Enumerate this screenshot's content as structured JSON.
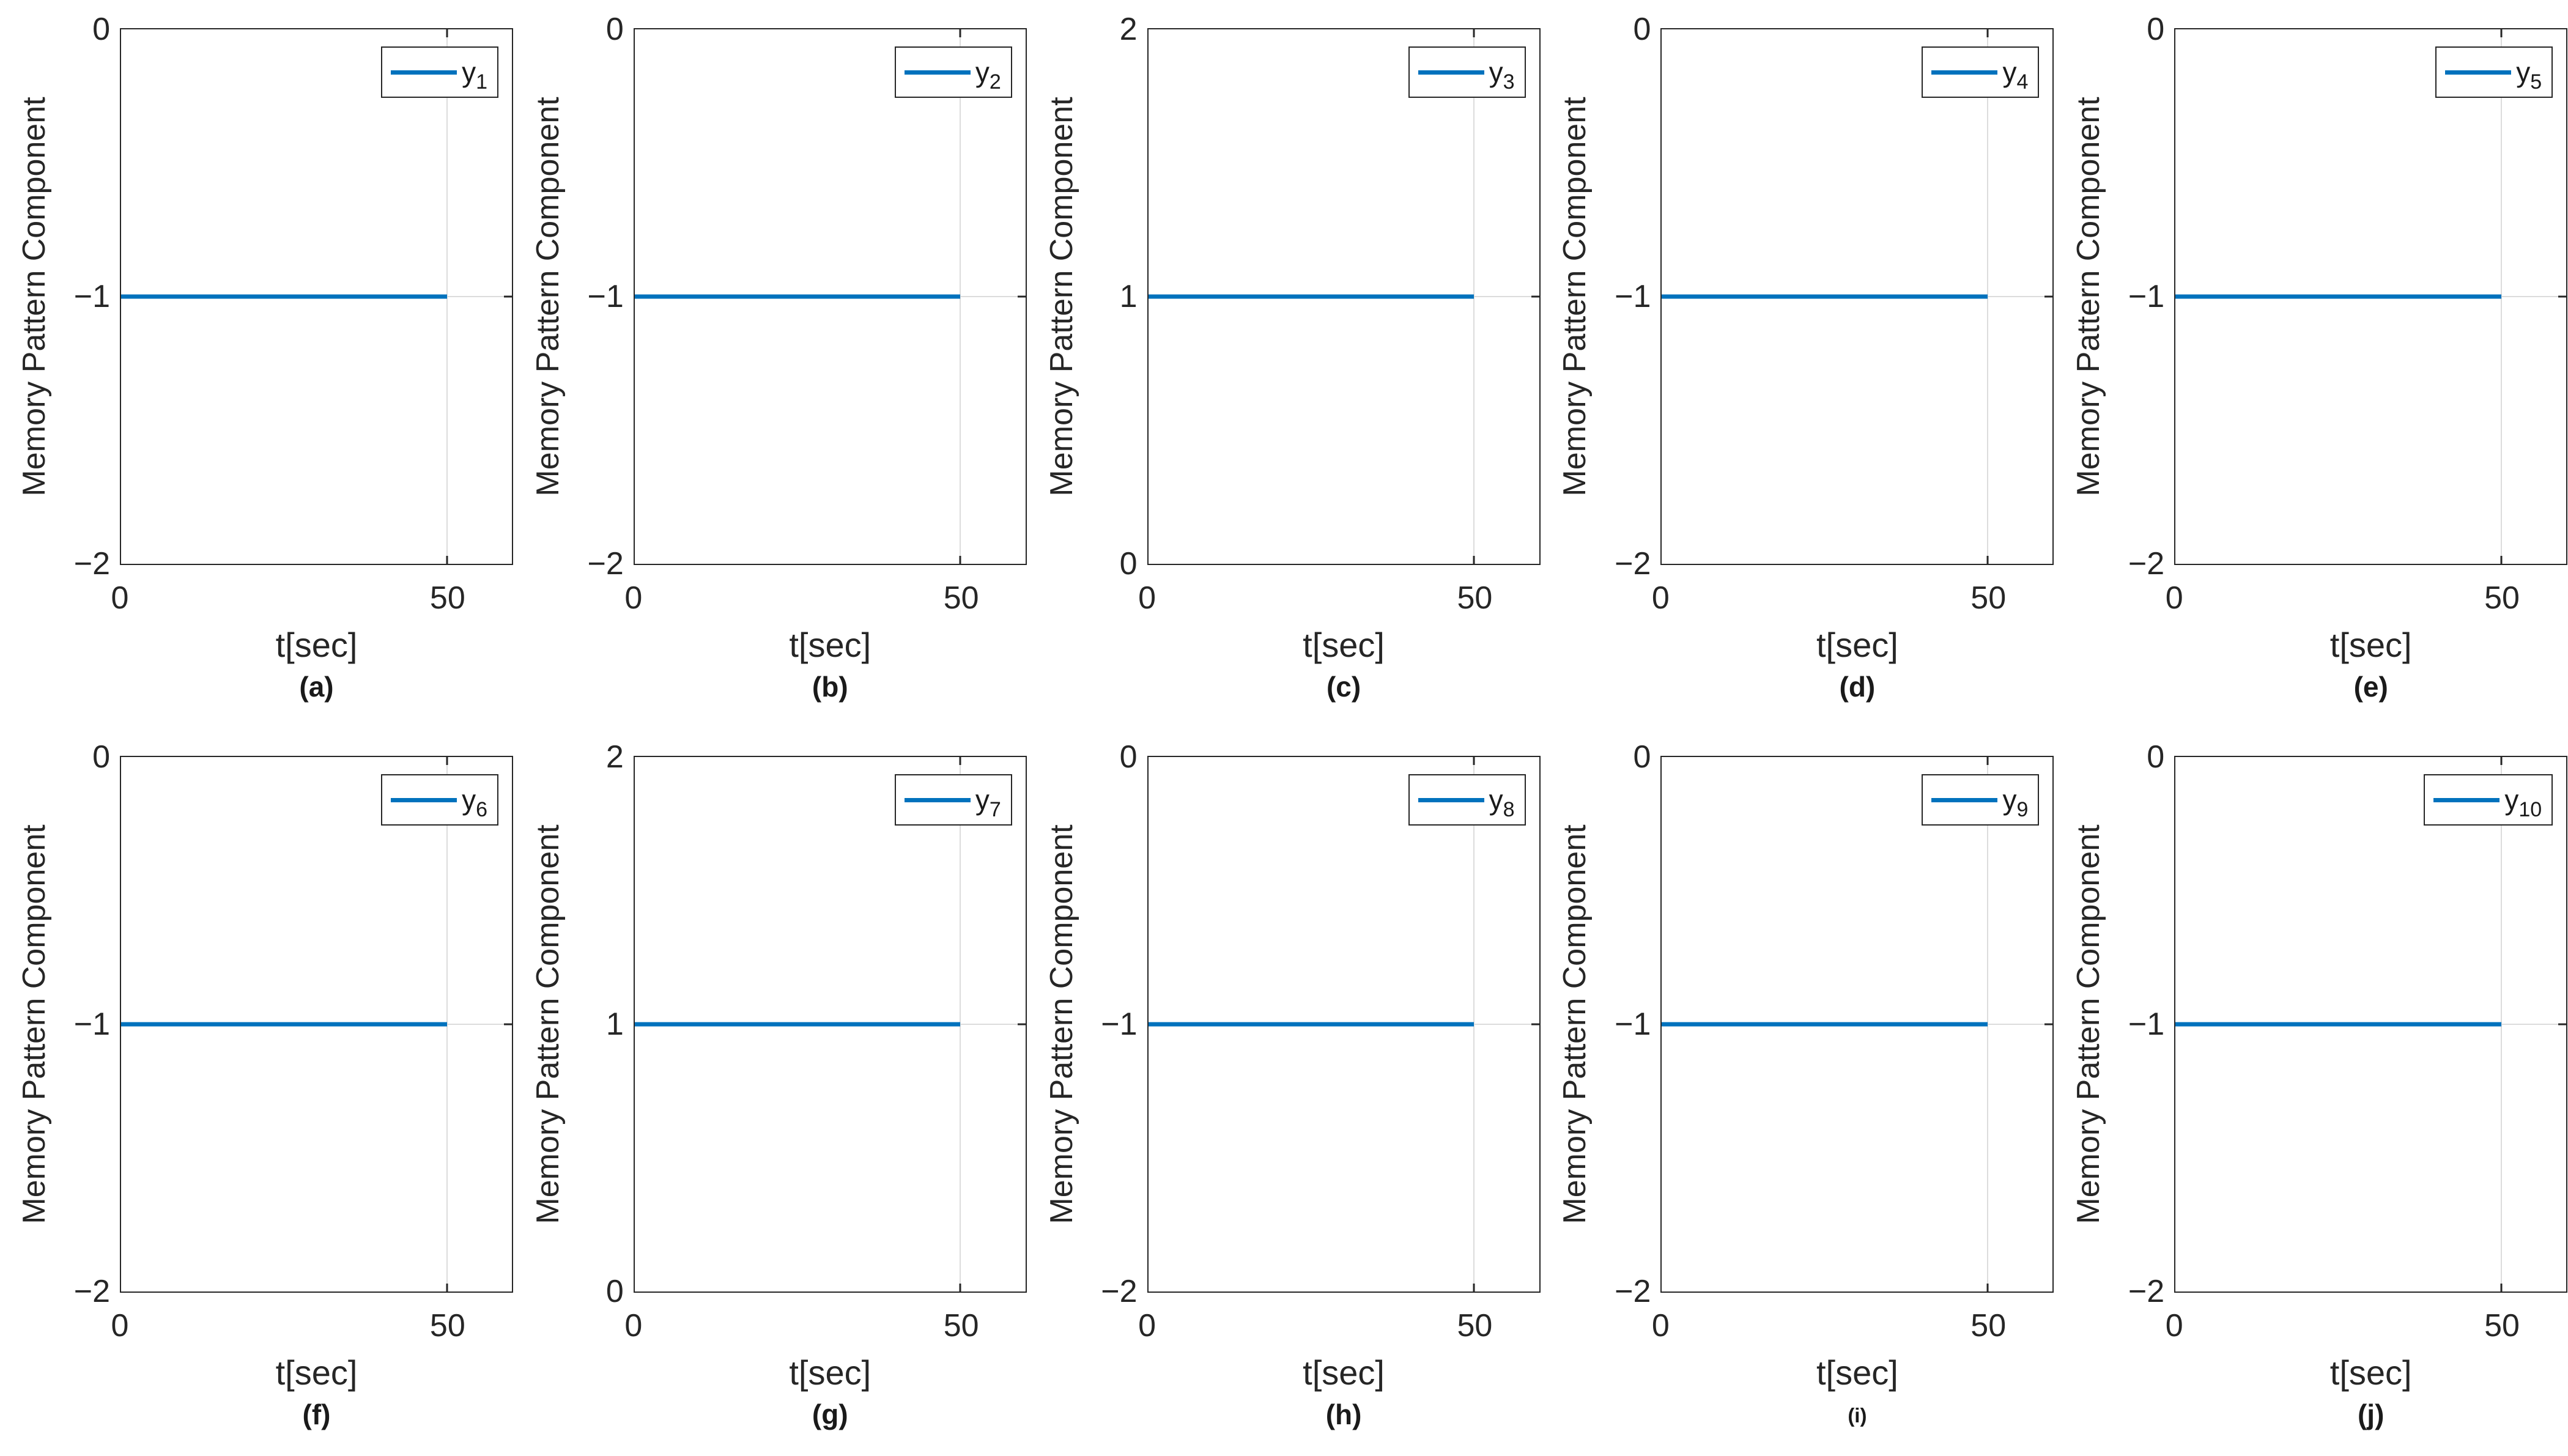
{
  "figure": {
    "ylabel": "Memory Pattern Component",
    "xlabel": "t[sec]",
    "x_tick_labels": [
      "0",
      "50"
    ]
  },
  "colors": {
    "line": "#0072BD",
    "axis_text": "#262626",
    "grid": "#dcdcdc",
    "background": "#ffffff",
    "legend_border": "#262626"
  },
  "plots": [
    {
      "panel": "(a)",
      "legend_base": "y",
      "legend_sub": "1",
      "y_tick_labels": [
        "0",
        "−1",
        "−2"
      ],
      "sublabel_small": false
    },
    {
      "panel": "(b)",
      "legend_base": "y",
      "legend_sub": "2",
      "y_tick_labels": [
        "0",
        "−1",
        "−2"
      ],
      "sublabel_small": false
    },
    {
      "panel": "(c)",
      "legend_base": "y",
      "legend_sub": "3",
      "y_tick_labels": [
        "2",
        "1",
        "0"
      ],
      "sublabel_small": false
    },
    {
      "panel": "(d)",
      "legend_base": "y",
      "legend_sub": "4",
      "y_tick_labels": [
        "0",
        "−1",
        "−2"
      ],
      "sublabel_small": false
    },
    {
      "panel": "(e)",
      "legend_base": "y",
      "legend_sub": "5",
      "y_tick_labels": [
        "0",
        "−1",
        "−2"
      ],
      "sublabel_small": false
    },
    {
      "panel": "(f)",
      "legend_base": "y",
      "legend_sub": "6",
      "y_tick_labels": [
        "0",
        "−1",
        "−2"
      ],
      "sublabel_small": false
    },
    {
      "panel": "(g)",
      "legend_base": "y",
      "legend_sub": "7",
      "y_tick_labels": [
        "2",
        "1",
        "0"
      ],
      "sublabel_small": false
    },
    {
      "panel": "(h)",
      "legend_base": "y",
      "legend_sub": "8",
      "y_tick_labels": [
        "0",
        "−1",
        "−2"
      ],
      "sublabel_small": false
    },
    {
      "panel": "(i)",
      "legend_base": "y",
      "legend_sub": "9",
      "y_tick_labels": [
        "0",
        "−1",
        "−2"
      ],
      "sublabel_small": true
    },
    {
      "panel": "(j)",
      "legend_base": "y",
      "legend_sub": "10",
      "y_tick_labels": [
        "0",
        "−1",
        "−2"
      ],
      "sublabel_small": false
    }
  ],
  "chart_data": [
    {
      "type": "line",
      "panel": "(a)",
      "xlabel": "t[sec]",
      "ylabel": "Memory Pattern Component",
      "series": [
        {
          "name": "y_1",
          "x": [
            0,
            50
          ],
          "y": [
            -1,
            -1
          ]
        }
      ],
      "xlim": [
        0,
        60
      ],
      "ylim": [
        -2,
        0
      ],
      "xticks": [
        0,
        50
      ],
      "yticks": [
        -2,
        -1,
        0
      ],
      "grid": true,
      "legend_position": "top-right"
    },
    {
      "type": "line",
      "panel": "(b)",
      "xlabel": "t[sec]",
      "ylabel": "Memory Pattern Component",
      "series": [
        {
          "name": "y_2",
          "x": [
            0,
            50
          ],
          "y": [
            -1,
            -1
          ]
        }
      ],
      "xlim": [
        0,
        60
      ],
      "ylim": [
        -2,
        0
      ],
      "xticks": [
        0,
        50
      ],
      "yticks": [
        -2,
        -1,
        0
      ],
      "grid": true,
      "legend_position": "top-right"
    },
    {
      "type": "line",
      "panel": "(c)",
      "xlabel": "t[sec]",
      "ylabel": "Memory Pattern Component",
      "series": [
        {
          "name": "y_3",
          "x": [
            0,
            50
          ],
          "y": [
            1,
            1
          ]
        }
      ],
      "xlim": [
        0,
        60
      ],
      "ylim": [
        0,
        2
      ],
      "xticks": [
        0,
        50
      ],
      "yticks": [
        0,
        1,
        2
      ],
      "grid": true,
      "legend_position": "top-right"
    },
    {
      "type": "line",
      "panel": "(d)",
      "xlabel": "t[sec]",
      "ylabel": "Memory Pattern Component",
      "series": [
        {
          "name": "y_4",
          "x": [
            0,
            50
          ],
          "y": [
            -1,
            -1
          ]
        }
      ],
      "xlim": [
        0,
        60
      ],
      "ylim": [
        -2,
        0
      ],
      "xticks": [
        0,
        50
      ],
      "yticks": [
        -2,
        -1,
        0
      ],
      "grid": true,
      "legend_position": "top-right"
    },
    {
      "type": "line",
      "panel": "(e)",
      "xlabel": "t[sec]",
      "ylabel": "Memory Pattern Component",
      "series": [
        {
          "name": "y_5",
          "x": [
            0,
            50
          ],
          "y": [
            -1,
            -1
          ]
        }
      ],
      "xlim": [
        0,
        60
      ],
      "ylim": [
        -2,
        0
      ],
      "xticks": [
        0,
        50
      ],
      "yticks": [
        -2,
        -1,
        0
      ],
      "grid": true,
      "legend_position": "top-right"
    },
    {
      "type": "line",
      "panel": "(f)",
      "xlabel": "t[sec]",
      "ylabel": "Memory Pattern Component",
      "series": [
        {
          "name": "y_6",
          "x": [
            0,
            50
          ],
          "y": [
            -1,
            -1
          ]
        }
      ],
      "xlim": [
        0,
        60
      ],
      "ylim": [
        -2,
        0
      ],
      "xticks": [
        0,
        50
      ],
      "yticks": [
        -2,
        -1,
        0
      ],
      "grid": true,
      "legend_position": "top-right"
    },
    {
      "type": "line",
      "panel": "(g)",
      "xlabel": "t[sec]",
      "ylabel": "Memory Pattern Component",
      "series": [
        {
          "name": "y_7",
          "x": [
            0,
            50
          ],
          "y": [
            1,
            1
          ]
        }
      ],
      "xlim": [
        0,
        60
      ],
      "ylim": [
        0,
        2
      ],
      "xticks": [
        0,
        50
      ],
      "yticks": [
        0,
        1,
        2
      ],
      "grid": true,
      "legend_position": "top-right"
    },
    {
      "type": "line",
      "panel": "(h)",
      "xlabel": "t[sec]",
      "ylabel": "Memory Pattern Component",
      "series": [
        {
          "name": "y_8",
          "x": [
            0,
            50
          ],
          "y": [
            -1,
            -1
          ]
        }
      ],
      "xlim": [
        0,
        60
      ],
      "ylim": [
        -2,
        0
      ],
      "xticks": [
        0,
        50
      ],
      "yticks": [
        -2,
        -1,
        0
      ],
      "grid": true,
      "legend_position": "top-right"
    },
    {
      "type": "line",
      "panel": "(i)",
      "xlabel": "t[sec]",
      "ylabel": "Memory Pattern Component",
      "series": [
        {
          "name": "y_9",
          "x": [
            0,
            50
          ],
          "y": [
            -1,
            -1
          ]
        }
      ],
      "xlim": [
        0,
        60
      ],
      "ylim": [
        -2,
        0
      ],
      "xticks": [
        0,
        50
      ],
      "yticks": [
        -2,
        -1,
        0
      ],
      "grid": true,
      "legend_position": "top-right"
    },
    {
      "type": "line",
      "panel": "(j)",
      "xlabel": "t[sec]",
      "ylabel": "Memory Pattern Component",
      "series": [
        {
          "name": "y_10",
          "x": [
            0,
            50
          ],
          "y": [
            -1,
            -1
          ]
        }
      ],
      "xlim": [
        0,
        60
      ],
      "ylim": [
        -2,
        0
      ],
      "xticks": [
        0,
        50
      ],
      "yticks": [
        -2,
        -1,
        0
      ],
      "grid": true,
      "legend_position": "top-right"
    }
  ]
}
